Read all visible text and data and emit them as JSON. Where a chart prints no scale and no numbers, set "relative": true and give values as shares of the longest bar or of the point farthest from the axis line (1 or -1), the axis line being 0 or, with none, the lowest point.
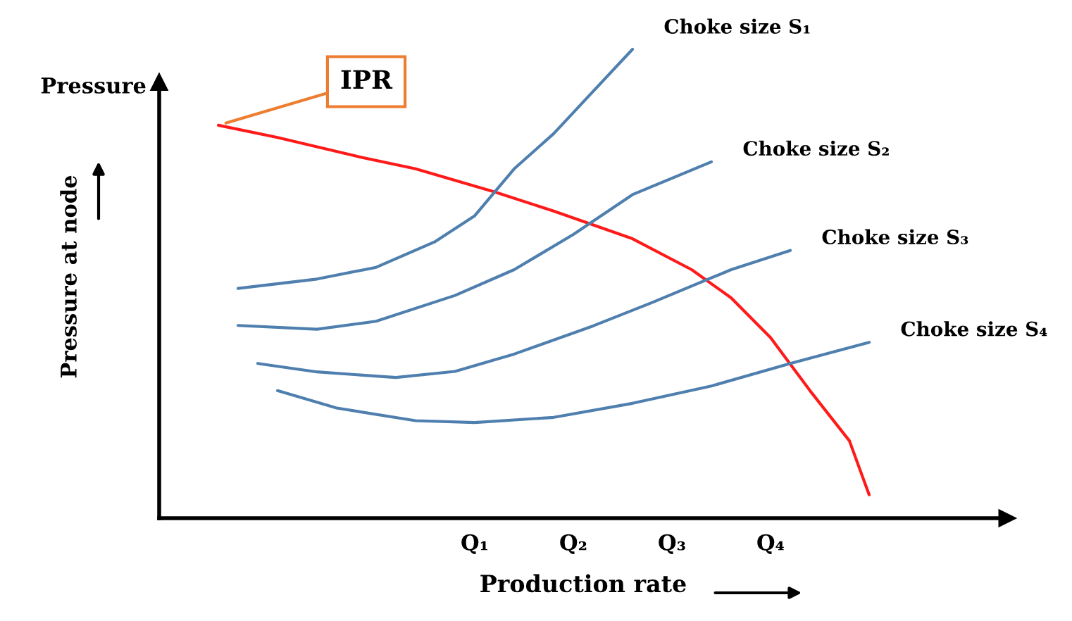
{
  "chart_data": {
    "type": "line",
    "relative": true,
    "xlabel": "Production rate",
    "ylabel": "Pressure at node",
    "categories": [
      null,
      null,
      null,
      null,
      null,
      null,
      null,
      null,
      null,
      null,
      null,
      null,
      null,
      null,
      null,
      null,
      "Q₁",
      null,
      null,
      null,
      null,
      "Q₂",
      null,
      null,
      null,
      null,
      "Q₃",
      null,
      null,
      null,
      null,
      "Q₄",
      null,
      null,
      null,
      null,
      null,
      null,
      null,
      null,
      null,
      null,
      null
    ],
    "annotations": [
      "IPR",
      "Pressure"
    ],
    "legend": false,
    "grid": false,
    "marker": "none",
    "line_style": "solid",
    "series": [
      {
        "color": "#ff1a1a",
        "values": [
          null,
          null,
          null,
          0.838,
          null,
          null,
          0.812,
          null,
          null,
          null,
          0.772,
          null,
          null,
          0.745,
          null,
          null,
          null,
          0.696,
          null,
          null,
          0.655,
          null,
          null,
          null,
          0.596,
          null,
          null,
          0.53,
          null,
          0.47,
          null,
          0.385,
          null,
          0.272,
          null,
          0.165,
          0.05,
          null,
          null,
          null,
          null,
          null,
          null
        ]
      },
      {
        "name": "Choke size S₁",
        "color": "#4f7fae",
        "values": [
          null,
          null,
          null,
          null,
          0.49,
          null,
          null,
          null,
          0.51,
          null,
          null,
          0.535,
          null,
          null,
          0.59,
          null,
          0.645,
          null,
          0.745,
          null,
          0.82,
          null,
          0.91,
          null,
          1,
          null,
          null,
          null,
          null,
          null,
          null,
          null,
          null,
          null,
          null,
          null,
          null,
          null,
          null,
          null,
          null,
          null,
          null
        ]
      },
      {
        "name": "Choke size S₂",
        "color": "#4f7fae",
        "values": [
          null,
          null,
          null,
          null,
          0.411,
          null,
          null,
          null,
          0.403,
          null,
          null,
          0.42,
          null,
          null,
          null,
          0.475,
          null,
          null,
          0.53,
          null,
          null,
          0.605,
          null,
          null,
          0.69,
          null,
          null,
          null,
          0.76,
          null,
          null,
          null,
          null,
          null,
          null,
          null,
          null,
          null,
          null,
          null,
          null,
          null,
          null
        ]
      },
      {
        "name": "Choke size S₃",
        "color": "#4f7fae",
        "values": [
          null,
          null,
          null,
          null,
          null,
          0.33,
          null,
          null,
          0.312,
          null,
          null,
          null,
          0.3,
          null,
          null,
          0.313,
          null,
          null,
          0.35,
          null,
          null,
          null,
          0.41,
          null,
          null,
          0.46,
          null,
          null,
          null,
          0.53,
          null,
          null,
          0.571,
          null,
          null,
          null,
          null,
          null,
          null,
          null,
          null,
          null,
          null
        ]
      },
      {
        "name": "Choke size S₄",
        "color": "#4f7fae",
        "values": [
          null,
          null,
          null,
          null,
          null,
          null,
          0.272,
          null,
          null,
          0.235,
          null,
          null,
          null,
          0.208,
          null,
          null,
          0.204,
          null,
          null,
          null,
          0.215,
          null,
          null,
          null,
          0.245,
          null,
          null,
          null,
          0.282,
          null,
          null,
          null,
          0.33,
          null,
          null,
          null,
          0.375,
          null,
          null,
          null,
          null,
          null,
          null
        ]
      }
    ]
  }
}
